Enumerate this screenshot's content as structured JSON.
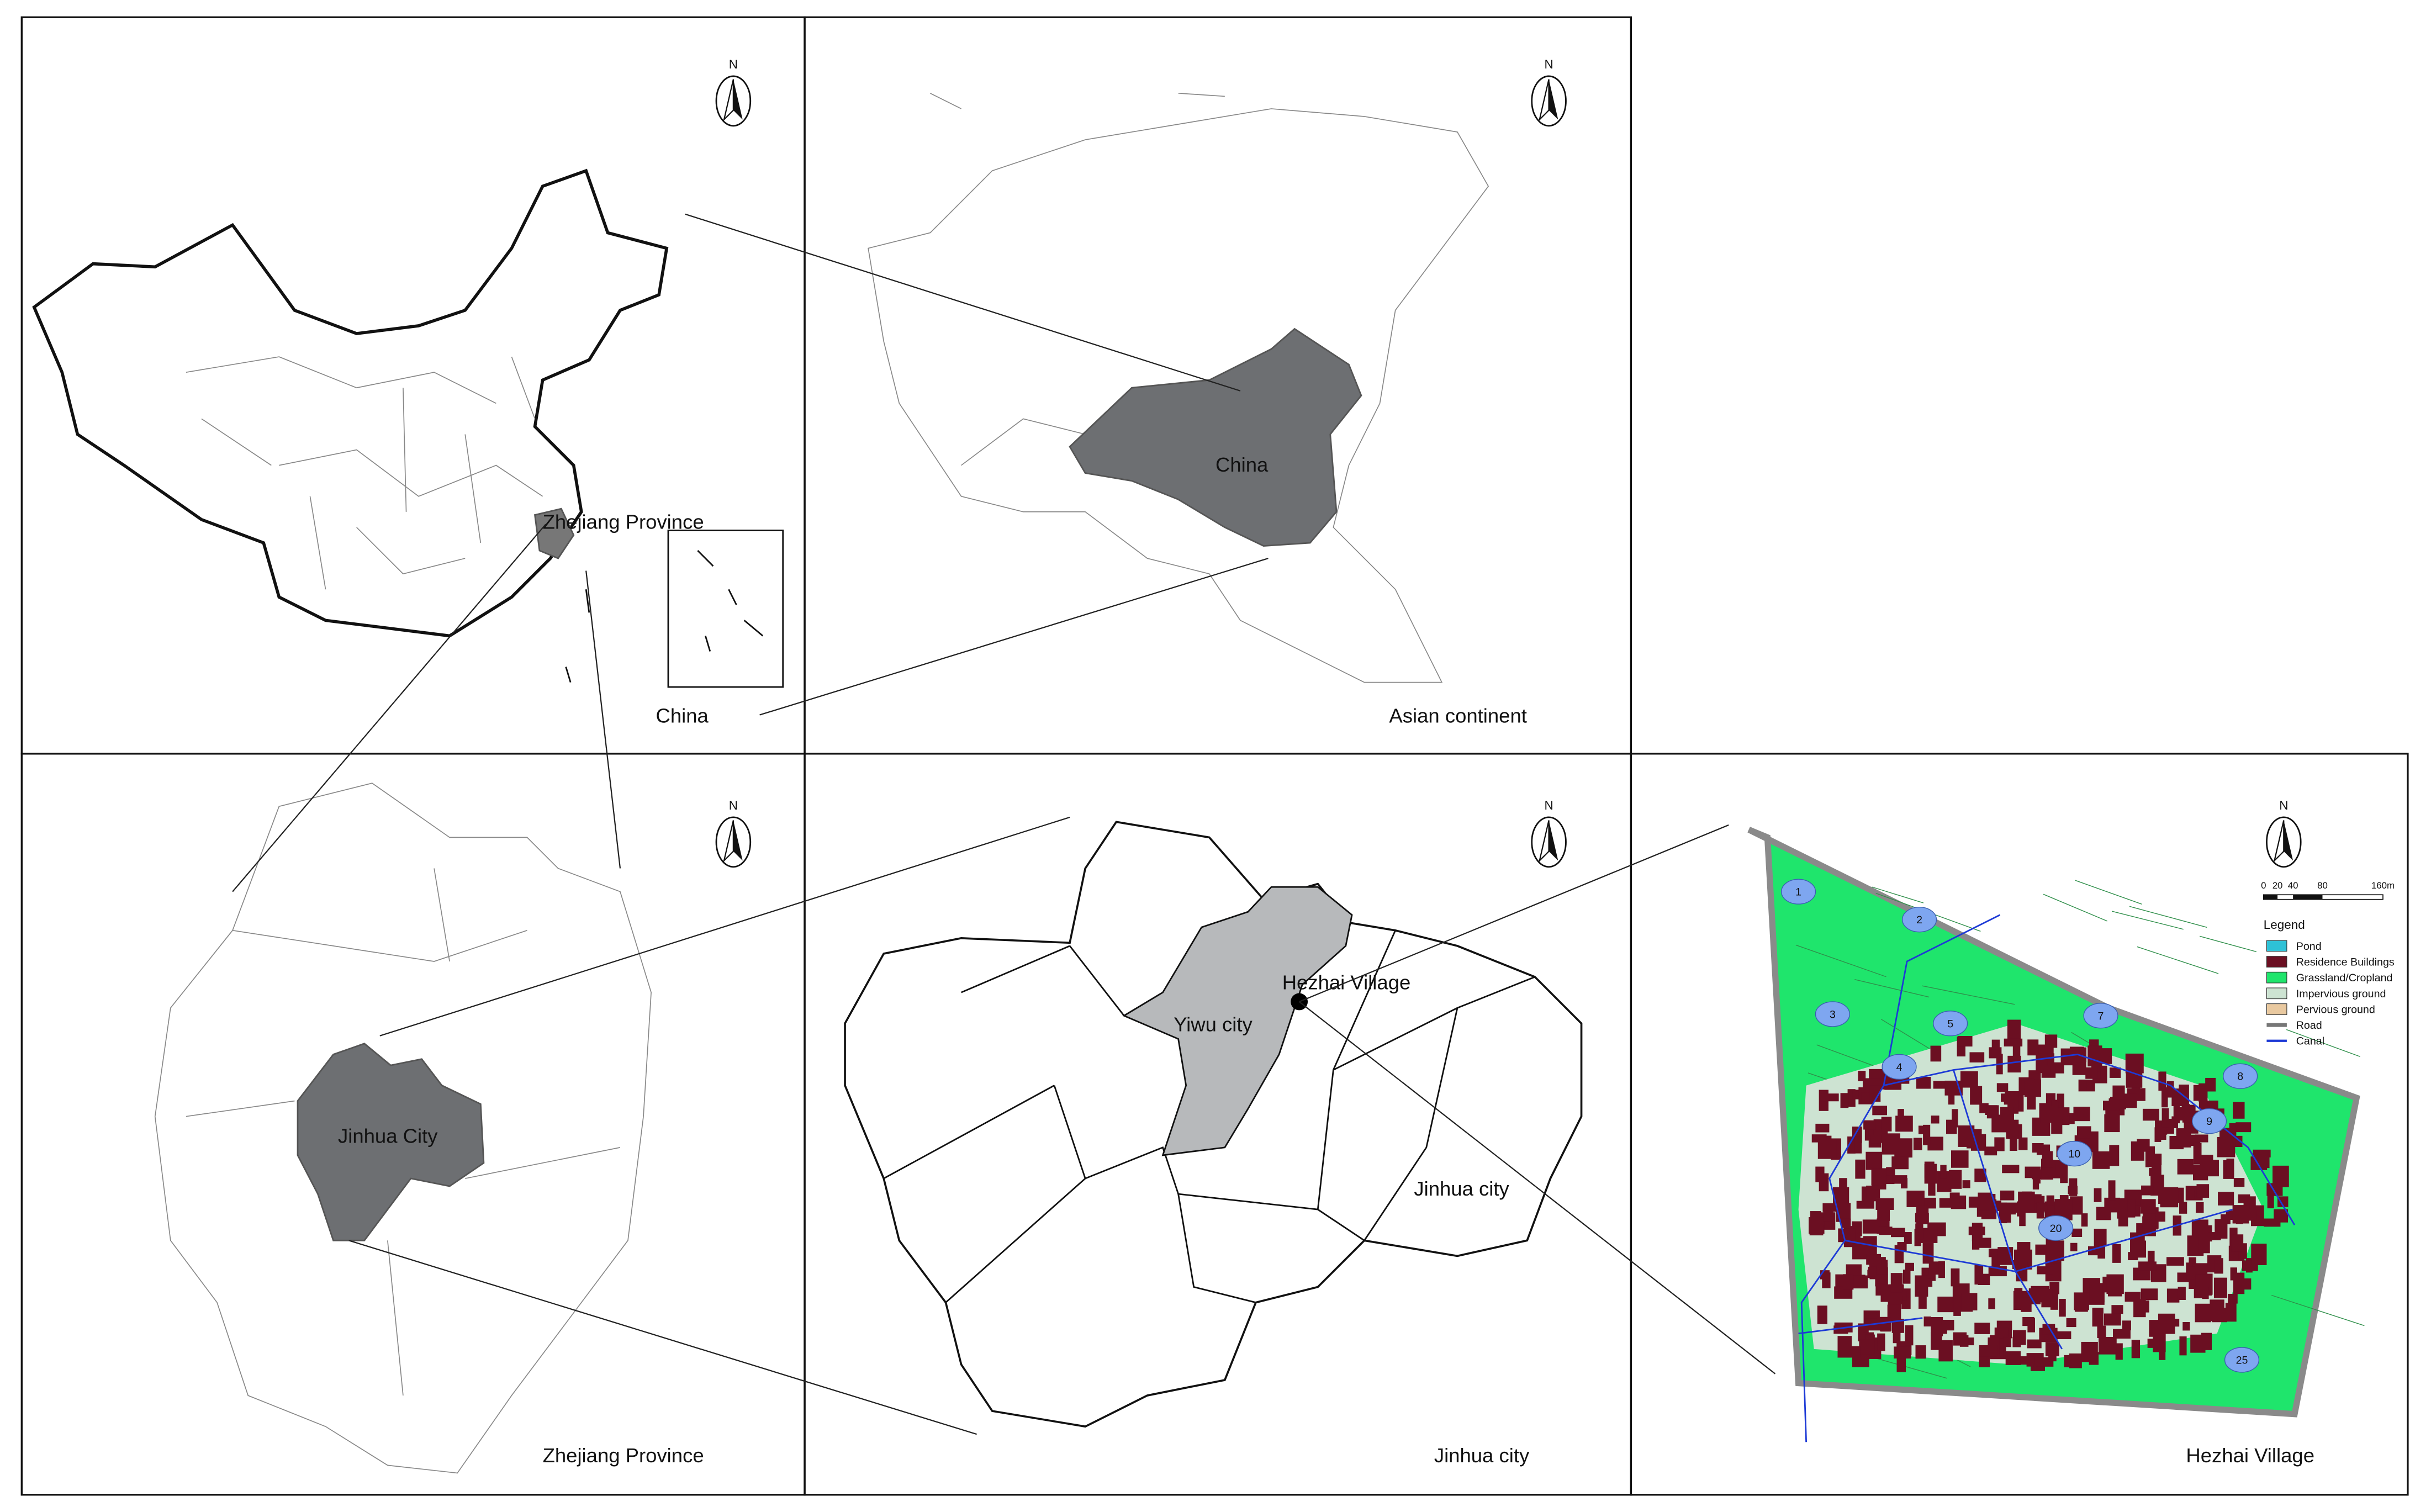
{
  "china_map": {
    "province_label": "Zhejiang Province",
    "caption": "China",
    "north": "N"
  },
  "asia_map": {
    "country_label": "China",
    "caption": "Asian continent",
    "north": "N"
  },
  "zhejiang_map": {
    "city_label": "Jinhua  City",
    "caption": "Zhejiang Province",
    "north": "N"
  },
  "jinhua_map": {
    "city_label": "Yiwu city",
    "village_label": "Hezhai Village",
    "district_label": "Jinhua city",
    "caption": "Jinhua city",
    "north": "N"
  },
  "village_map": {
    "caption": "Hezhai Village",
    "north": "N",
    "scale_labels": [
      "0",
      "20",
      "40",
      "80",
      "160m"
    ],
    "legend": {
      "title": "Legend",
      "items": [
        "Pond",
        "Residence Buildings",
        "Grassland/Cropland",
        "Impervious ground",
        "Pervious ground",
        "Road",
        "Canal"
      ]
    },
    "pond_labels": [
      "1",
      "2",
      "3",
      "4",
      "5",
      "7",
      "8",
      "9",
      "10",
      "20",
      "25"
    ]
  }
}
